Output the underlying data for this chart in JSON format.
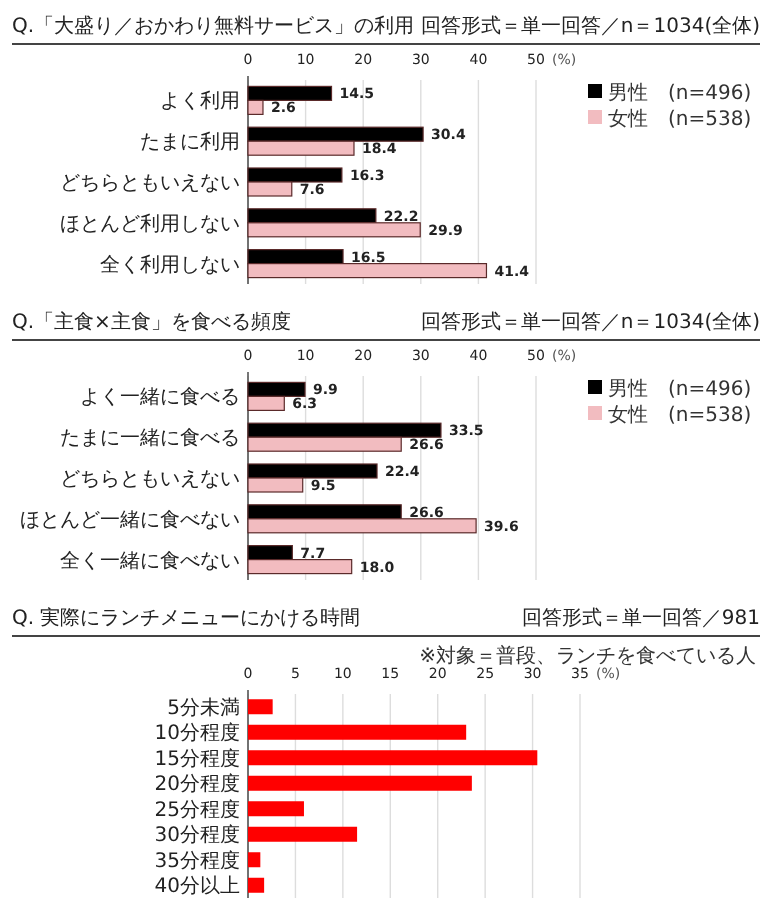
{
  "chart_data": [
    {
      "type": "bar",
      "orientation": "horizontal",
      "title": "Q.「大盛り／おかわり無料サービス」の利用",
      "subtitle": "回答形式＝単一回答／n＝1034(全体)",
      "xlabel": "(%)",
      "categories": [
        "よく利用",
        "たまに利用",
        "どちらともいえない",
        "ほとんど利用しない",
        "全く利用しない"
      ],
      "series": [
        {
          "name": "男性　(n=496)",
          "color": "#000000",
          "values": [
            14.5,
            30.4,
            16.3,
            22.2,
            16.5
          ]
        },
        {
          "name": "女性　(n=538)",
          "color": "#f2bcc0",
          "values": [
            2.6,
            18.4,
            7.6,
            29.9,
            41.4
          ]
        }
      ],
      "xlim": [
        0,
        50
      ],
      "xticks": [
        0,
        10,
        20,
        30,
        40,
        50
      ],
      "grid": "x",
      "legend": "top right",
      "data_labels": true
    },
    {
      "type": "bar",
      "orientation": "horizontal",
      "title": "Q.「主食×主食」を食べる頻度",
      "subtitle": "回答形式＝単一回答／n＝1034(全体)",
      "xlabel": "(%)",
      "categories": [
        "よく一緒に食べる",
        "たまに一緒に食べる",
        "どちらともいえない",
        "ほとんど一緒に食べない",
        "全く一緒に食べない"
      ],
      "series": [
        {
          "name": "男性　(n=496)",
          "color": "#000000",
          "values": [
            9.9,
            33.5,
            22.4,
            26.6,
            7.7
          ],
          "value_labels": [
            "9.9",
            "33.5",
            "22.4",
            "26.6",
            "7.7"
          ]
        },
        {
          "name": "女性　(n=538)",
          "color": "#f2bcc0",
          "values": [
            6.3,
            26.6,
            9.5,
            39.6,
            18.0
          ],
          "value_labels": [
            "6.3",
            "26.6",
            "9.5",
            "39.6",
            "18.0"
          ]
        }
      ],
      "xlim": [
        0,
        50
      ],
      "xticks": [
        0,
        10,
        20,
        30,
        40,
        50
      ],
      "grid": "x",
      "legend": "top right"
    },
    {
      "type": "bar",
      "orientation": "horizontal",
      "title": "Q. 実際にランチメニューにかける時間",
      "subtitle": "回答形式＝単一回答／981",
      "xlabel": "(%)",
      "annotations": [
        "※対象＝普段、ランチを食べている人"
      ],
      "categories": [
        "5分未満",
        "10分程度",
        "15分程度",
        "20分程度",
        "25分程度",
        "30分程度",
        "35分程度",
        "40分以上"
      ],
      "series": [
        {
          "color": "#ff0000",
          "values": [
            2.6,
            23.0,
            30.5,
            23.6,
            5.9,
            11.5,
            1.3,
            1.7
          ]
        }
      ],
      "xlim": [
        0,
        35
      ],
      "xticks": [
        0,
        5,
        10,
        15,
        20,
        25,
        30,
        35
      ],
      "grid": "x"
    }
  ]
}
